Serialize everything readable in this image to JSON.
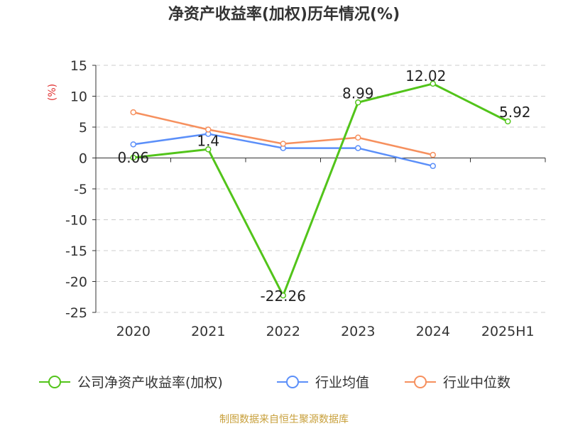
{
  "chart_data": {
    "type": "line",
    "title": "净资产收益率(加权)历年情况(%)",
    "ylabel": "(%)",
    "categories": [
      "2020",
      "2021",
      "2022",
      "2023",
      "2024",
      "2025H1"
    ],
    "y_ticks": [
      15,
      10,
      5,
      0,
      -5,
      -10,
      -15,
      -20,
      -25
    ],
    "ylim": [
      -25,
      15
    ],
    "grid": true,
    "legend_position": "bottom",
    "series": [
      {
        "name": "公司净资产收益率(加权)",
        "color": "#52c41a",
        "values": [
          0.06,
          1.4,
          -22.26,
          8.99,
          12.02,
          5.92
        ],
        "labels": [
          "0.06",
          "1.4",
          "-22.26",
          "8.99",
          "12.02",
          "5.92"
        ]
      },
      {
        "name": "行业均值",
        "color": "#5b8ff9",
        "values": [
          2.2,
          3.9,
          1.6,
          1.6,
          -1.3,
          null
        ]
      },
      {
        "name": "行业中位数",
        "color": "#f6905e",
        "values": [
          7.4,
          4.6,
          2.3,
          3.3,
          0.5,
          null
        ]
      }
    ]
  },
  "source": "制图数据来自恒生聚源数据库"
}
